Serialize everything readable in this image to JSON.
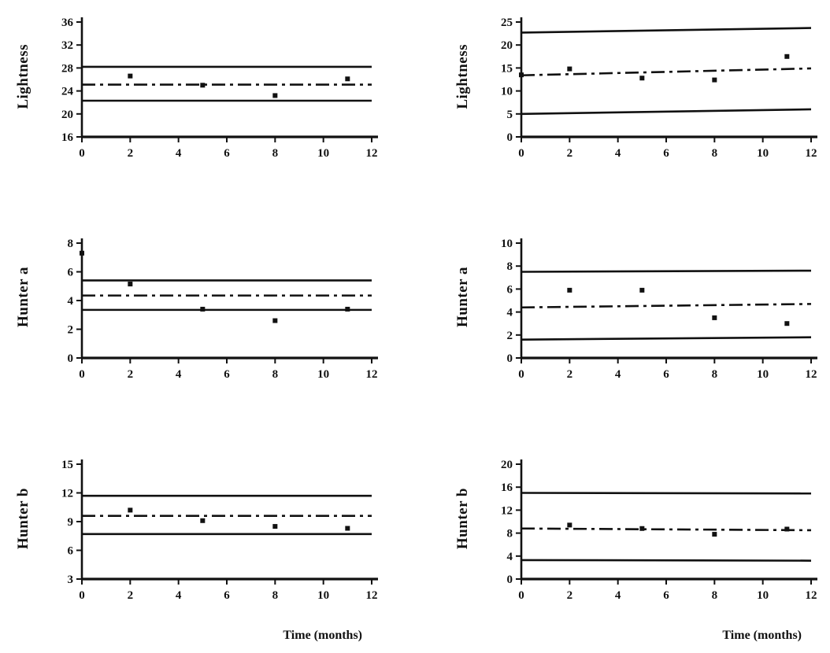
{
  "figure": {
    "xlabel": "Time (months)"
  },
  "chart_data": [
    {
      "type": "scatter",
      "ylabel": "Lightness",
      "xlabel": "Time (months)",
      "xlim": [
        0,
        12
      ],
      "xticks": [
        0,
        2,
        4,
        6,
        8,
        10,
        12
      ],
      "ylim": [
        16,
        36
      ],
      "yticks": [
        16,
        20,
        24,
        28,
        32,
        36
      ],
      "points": [
        [
          2,
          26.6
        ],
        [
          5,
          25.0
        ],
        [
          8,
          23.2
        ],
        [
          11,
          26.1
        ]
      ],
      "lines": {
        "upper": [
          28.2,
          28.2
        ],
        "center": [
          25.1,
          25.1
        ],
        "lower": [
          22.3,
          22.3
        ]
      }
    },
    {
      "type": "scatter",
      "ylabel": "Lightness",
      "xlabel": "Time (months)",
      "xlim": [
        0,
        12
      ],
      "xticks": [
        0,
        2,
        4,
        6,
        8,
        10,
        12
      ],
      "ylim": [
        0,
        25
      ],
      "yticks": [
        0,
        5,
        10,
        15,
        20,
        25
      ],
      "points": [
        [
          0,
          13.5
        ],
        [
          2,
          14.8
        ],
        [
          5,
          12.8
        ],
        [
          8,
          12.4
        ],
        [
          11,
          17.5
        ]
      ],
      "lines": {
        "upper": [
          22.7,
          23.7
        ],
        "center": [
          13.4,
          14.9
        ],
        "lower": [
          5.0,
          6.0
        ]
      }
    },
    {
      "type": "scatter",
      "ylabel": "Hunter a",
      "xlabel": "Time (months)",
      "xlim": [
        0,
        12
      ],
      "xticks": [
        0,
        2,
        4,
        6,
        8,
        10,
        12
      ],
      "ylim": [
        0,
        8
      ],
      "yticks": [
        0,
        2,
        4,
        6,
        8
      ],
      "points": [
        [
          0,
          7.3
        ],
        [
          2,
          5.15
        ],
        [
          5,
          3.4
        ],
        [
          8,
          2.6
        ],
        [
          11,
          3.4
        ]
      ],
      "lines": {
        "upper": [
          5.4,
          5.4
        ],
        "center": [
          4.35,
          4.35
        ],
        "lower": [
          3.35,
          3.35
        ]
      }
    },
    {
      "type": "scatter",
      "ylabel": "Hunter a",
      "xlabel": "Time (months)",
      "xlim": [
        0,
        12
      ],
      "xticks": [
        0,
        2,
        4,
        6,
        8,
        10,
        12
      ],
      "ylim": [
        0,
        10
      ],
      "yticks": [
        0,
        2,
        4,
        6,
        8,
        10
      ],
      "points": [
        [
          2,
          5.9
        ],
        [
          5,
          5.9
        ],
        [
          8,
          3.5
        ],
        [
          11,
          3.0
        ]
      ],
      "lines": {
        "upper": [
          7.5,
          7.6
        ],
        "center": [
          4.4,
          4.7
        ],
        "lower": [
          1.6,
          1.8
        ]
      }
    },
    {
      "type": "scatter",
      "ylabel": "Hunter b",
      "xlabel": "Time (months)",
      "xlim": [
        0,
        12
      ],
      "xticks": [
        0,
        2,
        4,
        6,
        8,
        10,
        12
      ],
      "ylim": [
        3,
        15
      ],
      "yticks": [
        3,
        6,
        9,
        12,
        15
      ],
      "points": [
        [
          2,
          10.2
        ],
        [
          5,
          9.1
        ],
        [
          8,
          8.5
        ],
        [
          11,
          8.3
        ]
      ],
      "lines": {
        "upper": [
          11.7,
          11.7
        ],
        "center": [
          9.6,
          9.6
        ],
        "lower": [
          7.7,
          7.7
        ]
      }
    },
    {
      "type": "scatter",
      "ylabel": "Hunter b",
      "xlabel": "Time (months)",
      "xlim": [
        0,
        12
      ],
      "xticks": [
        0,
        2,
        4,
        6,
        8,
        10,
        12
      ],
      "ylim": [
        0,
        20
      ],
      "yticks": [
        0,
        4,
        8,
        12,
        16,
        20
      ],
      "points": [
        [
          2,
          9.4
        ],
        [
          5,
          8.8
        ],
        [
          8,
          7.8
        ],
        [
          11,
          8.7
        ]
      ],
      "lines": {
        "upper": [
          15.0,
          14.9
        ],
        "center": [
          8.8,
          8.5
        ],
        "lower": [
          3.3,
          3.2
        ]
      }
    }
  ]
}
